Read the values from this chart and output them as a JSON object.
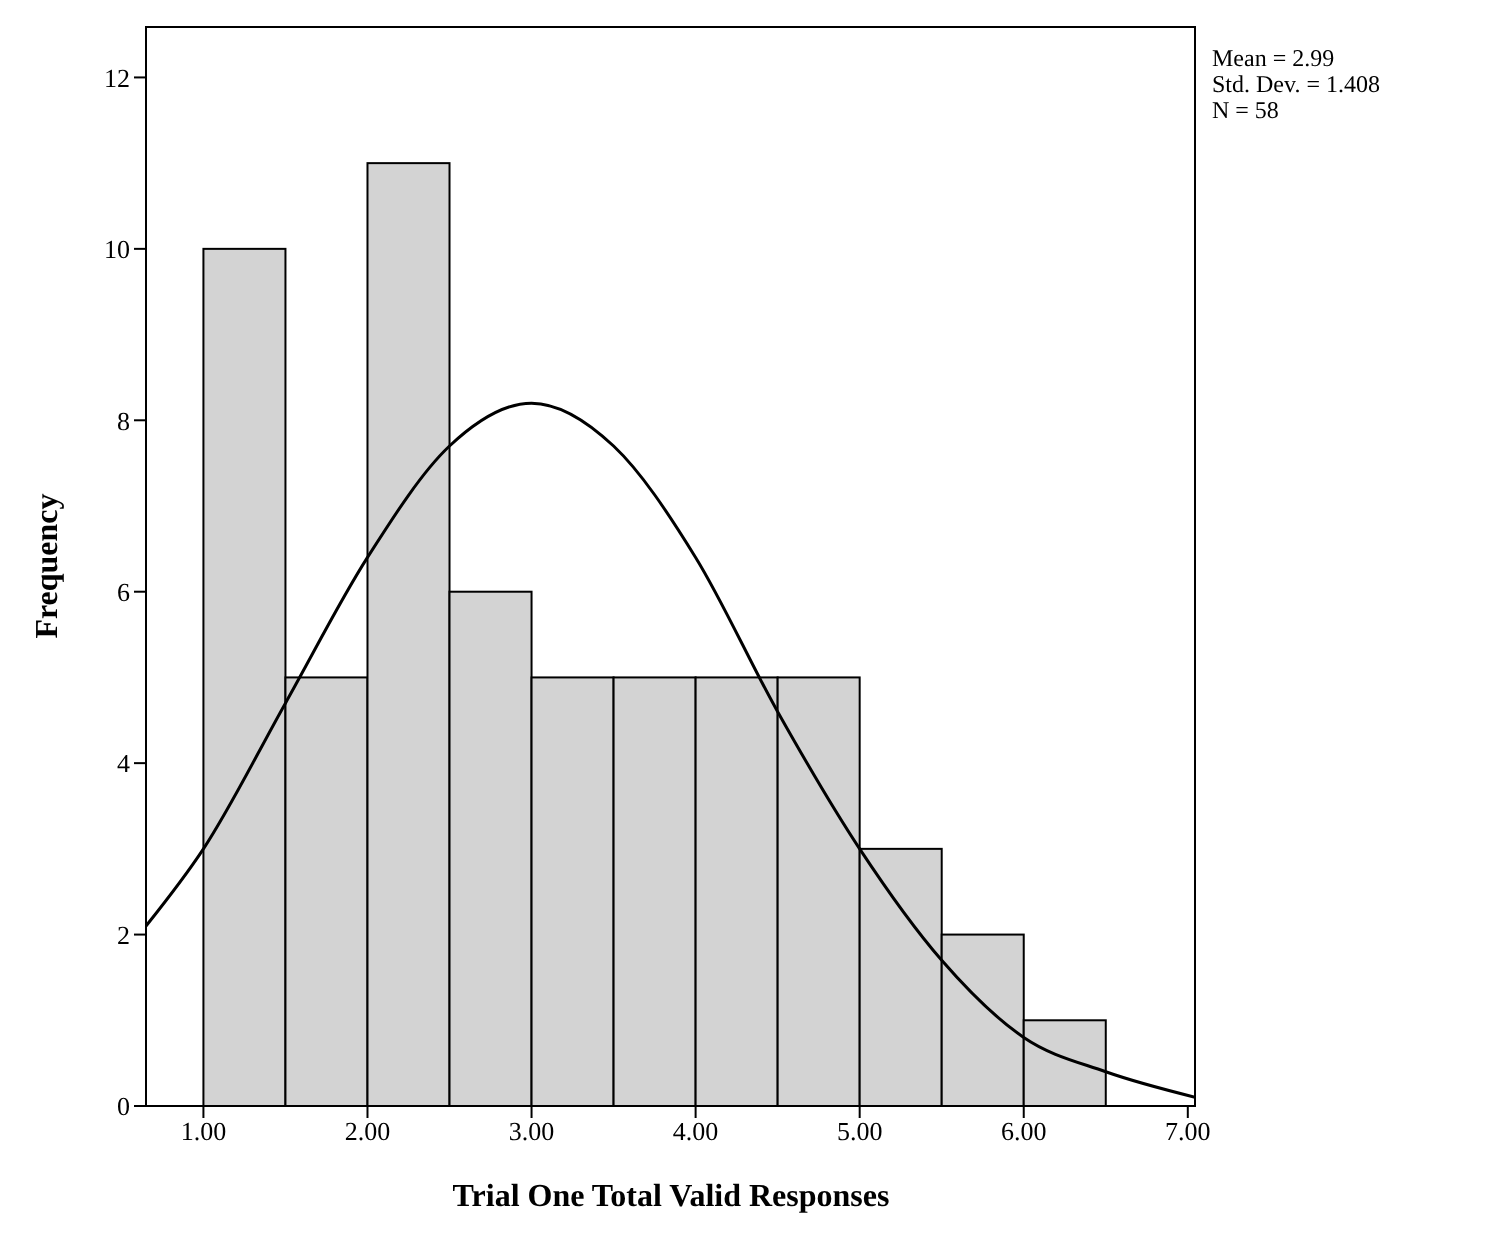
{
  "chart_data": {
    "type": "histogram",
    "xlabel": "Trial One Total Valid Responses",
    "ylabel": "Frequency",
    "bins": [
      1.0,
      1.5,
      2.0,
      2.5,
      3.0,
      3.5,
      4.0,
      4.5,
      5.0,
      5.5,
      6.0,
      6.5
    ],
    "values": [
      10,
      5,
      11,
      6,
      5,
      5,
      5,
      5,
      3,
      2,
      1
    ],
    "color": "#d3d3d3",
    "series": [
      {
        "type": "line",
        "color": "#000000",
        "x": [
          0.65,
          1.0,
          1.5,
          2.0,
          2.5,
          3.0,
          3.5,
          4.0,
          4.5,
          5.0,
          5.5,
          6.0,
          6.5,
          7.05
        ],
        "values": [
          2.1,
          3.0,
          4.7,
          6.4,
          7.7,
          8.2,
          7.7,
          6.4,
          4.6,
          3.0,
          1.7,
          0.8,
          0.4,
          0.1
        ]
      }
    ],
    "xlim": [
      0.65,
      7.05
    ],
    "xticks": [
      {
        "value": 1,
        "label": "1.00"
      },
      {
        "value": 2,
        "label": "2.00"
      },
      {
        "value": 3,
        "label": "3.00"
      },
      {
        "value": 4,
        "label": "4.00"
      },
      {
        "value": 5,
        "label": "5.00"
      },
      {
        "value": 6,
        "label": "6.00"
      },
      {
        "value": 7,
        "label": "7.00"
      }
    ],
    "ylim": [
      0,
      12.6
    ],
    "yticks": [
      0,
      2,
      4,
      6,
      8,
      10,
      12
    ],
    "annotations": [
      "Mean = 2.99",
      "Std. Dev. = 1.408",
      "N = 58"
    ],
    "grid": false,
    "legend": false,
    "marker": "none",
    "line_style": "solid"
  }
}
